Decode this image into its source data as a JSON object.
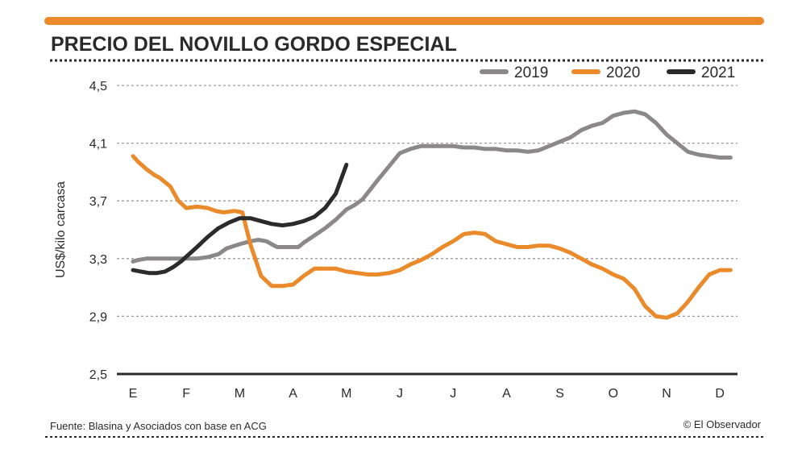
{
  "chart_data": {
    "type": "line",
    "title": "PRECIO DEL NOVILLO GORDO ESPECIAL",
    "ylabel": "US$/kilo carcasa",
    "xlabel": "",
    "ylim": [
      2.5,
      4.5
    ],
    "y_ticks": [
      "4,5",
      "4,1",
      "3,7",
      "3,3",
      "2,9",
      "2,5"
    ],
    "y_tick_values": [
      4.5,
      4.1,
      3.7,
      3.3,
      2.9,
      2.5
    ],
    "categories": [
      "E",
      "F",
      "M",
      "A",
      "M",
      "J",
      "J",
      "A",
      "S",
      "O",
      "N",
      "D"
    ],
    "grid": true,
    "legend_position": "top-right",
    "series": [
      {
        "name": "2019",
        "color": "#8c8788",
        "x": [
          0,
          0.1,
          0.25,
          0.4,
          0.5,
          0.7,
          0.9,
          1.0,
          1.2,
          1.4,
          1.6,
          1.75,
          2.0,
          2.2,
          2.35,
          2.5,
          2.7,
          2.9,
          3.0,
          3.1,
          3.2,
          3.4,
          3.6,
          3.8,
          4.0,
          4.15,
          4.3,
          4.45,
          4.6,
          4.8,
          5.0,
          5.2,
          5.4,
          5.6,
          5.8,
          6.0,
          6.2,
          6.4,
          6.6,
          6.8,
          7.0,
          7.2,
          7.4,
          7.6,
          7.8,
          8.0,
          8.2,
          8.4,
          8.6,
          8.8,
          9.0,
          9.2,
          9.4,
          9.6,
          9.8,
          10.0,
          10.2,
          10.4,
          10.6,
          10.8,
          11.0,
          11.2
        ],
        "values": [
          3.28,
          3.29,
          3.3,
          3.3,
          3.3,
          3.3,
          3.3,
          3.3,
          3.3,
          3.31,
          3.33,
          3.37,
          3.4,
          3.42,
          3.43,
          3.42,
          3.38,
          3.38,
          3.38,
          3.38,
          3.41,
          3.46,
          3.51,
          3.57,
          3.64,
          3.67,
          3.71,
          3.78,
          3.85,
          3.94,
          4.03,
          4.06,
          4.08,
          4.08,
          4.08,
          4.08,
          4.07,
          4.07,
          4.06,
          4.06,
          4.05,
          4.05,
          4.04,
          4.05,
          4.08,
          4.11,
          4.14,
          4.19,
          4.22,
          4.24,
          4.29,
          4.31,
          4.32,
          4.3,
          4.24,
          4.16,
          4.1,
          4.04,
          4.02,
          4.01,
          4.0,
          4.0
        ]
      },
      {
        "name": "2020",
        "color": "#ea8a2b",
        "x": [
          0,
          0.1,
          0.25,
          0.4,
          0.5,
          0.7,
          0.85,
          1.0,
          1.2,
          1.4,
          1.55,
          1.7,
          1.9,
          2.05,
          2.2,
          2.4,
          2.6,
          2.8,
          3.0,
          3.2,
          3.4,
          3.6,
          3.8,
          4.0,
          4.2,
          4.4,
          4.6,
          4.8,
          5.0,
          5.2,
          5.4,
          5.6,
          5.8,
          6.0,
          6.2,
          6.4,
          6.6,
          6.8,
          7.0,
          7.2,
          7.4,
          7.6,
          7.8,
          8.0,
          8.2,
          8.4,
          8.6,
          8.8,
          9.0,
          9.2,
          9.4,
          9.6,
          9.8,
          10.0,
          10.2,
          10.4,
          10.6,
          10.8,
          11.0,
          11.2
        ],
        "values": [
          4.01,
          3.97,
          3.92,
          3.88,
          3.86,
          3.8,
          3.7,
          3.65,
          3.66,
          3.65,
          3.63,
          3.62,
          3.63,
          3.62,
          3.4,
          3.18,
          3.11,
          3.11,
          3.12,
          3.18,
          3.23,
          3.23,
          3.23,
          3.21,
          3.2,
          3.19,
          3.19,
          3.2,
          3.22,
          3.26,
          3.29,
          3.33,
          3.38,
          3.42,
          3.47,
          3.48,
          3.47,
          3.42,
          3.4,
          3.38,
          3.38,
          3.39,
          3.39,
          3.37,
          3.34,
          3.3,
          3.26,
          3.23,
          3.19,
          3.16,
          3.09,
          2.97,
          2.9,
          2.89,
          2.92,
          3.0,
          3.1,
          3.19,
          3.22,
          3.22
        ]
      },
      {
        "name": "2021",
        "color": "#2b2b2b",
        "x": [
          0,
          0.15,
          0.3,
          0.45,
          0.6,
          0.75,
          0.9,
          1.05,
          1.2,
          1.4,
          1.6,
          1.8,
          2.0,
          2.2,
          2.4,
          2.6,
          2.8,
          3.0,
          3.2,
          3.4,
          3.6,
          3.8,
          4.0
        ],
        "values": [
          3.22,
          3.21,
          3.2,
          3.2,
          3.21,
          3.24,
          3.28,
          3.33,
          3.38,
          3.45,
          3.51,
          3.55,
          3.58,
          3.58,
          3.56,
          3.54,
          3.53,
          3.54,
          3.56,
          3.59,
          3.65,
          3.75,
          3.95
        ]
      }
    ]
  },
  "footer": {
    "source": "Fuente: Blasina y Asociados con base en ACG",
    "credit": "© El Observador"
  }
}
